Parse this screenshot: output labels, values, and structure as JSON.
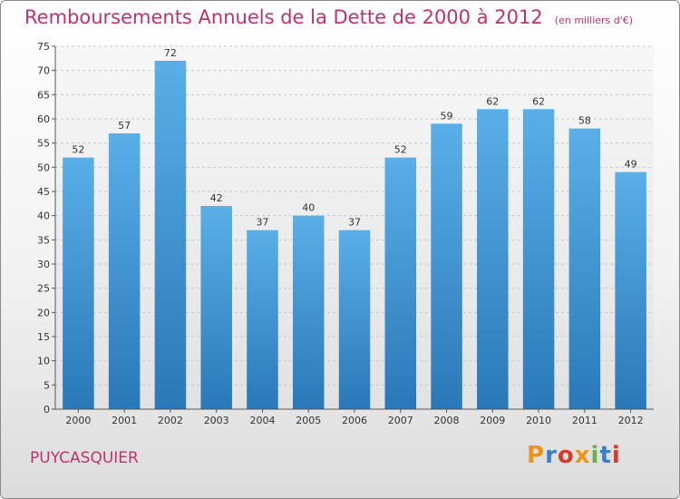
{
  "header": {
    "title": "Remboursements Annuels de la Dette de 2000 à 2012",
    "unit": "(en milliers d'€)"
  },
  "footer": {
    "commune": "PUYCASQUIER",
    "logo_text": "Proxiti",
    "logo_colors": [
      "#e8951c",
      "#3d7fc4",
      "#d63b2a",
      "#e8951c",
      "#6ab04c",
      "#3d7fc4",
      "#d63b2a"
    ]
  },
  "chart_data": {
    "type": "bar",
    "title": "Remboursements Annuels de la Dette de 2000 à 2012",
    "categories": [
      "2000",
      "2001",
      "2002",
      "2003",
      "2004",
      "2005",
      "2006",
      "2007",
      "2008",
      "2009",
      "2010",
      "2011",
      "2012"
    ],
    "values": [
      52,
      57,
      72,
      42,
      37,
      40,
      37,
      52,
      59,
      62,
      62,
      58,
      49
    ],
    "ylim": [
      0,
      75
    ],
    "yticks": [
      0,
      5,
      10,
      15,
      20,
      25,
      30,
      35,
      40,
      45,
      50,
      55,
      60,
      65,
      70,
      75
    ],
    "grid": true,
    "bar_color_top": "#5aafe8",
    "bar_color_bottom": "#2a78b8"
  }
}
